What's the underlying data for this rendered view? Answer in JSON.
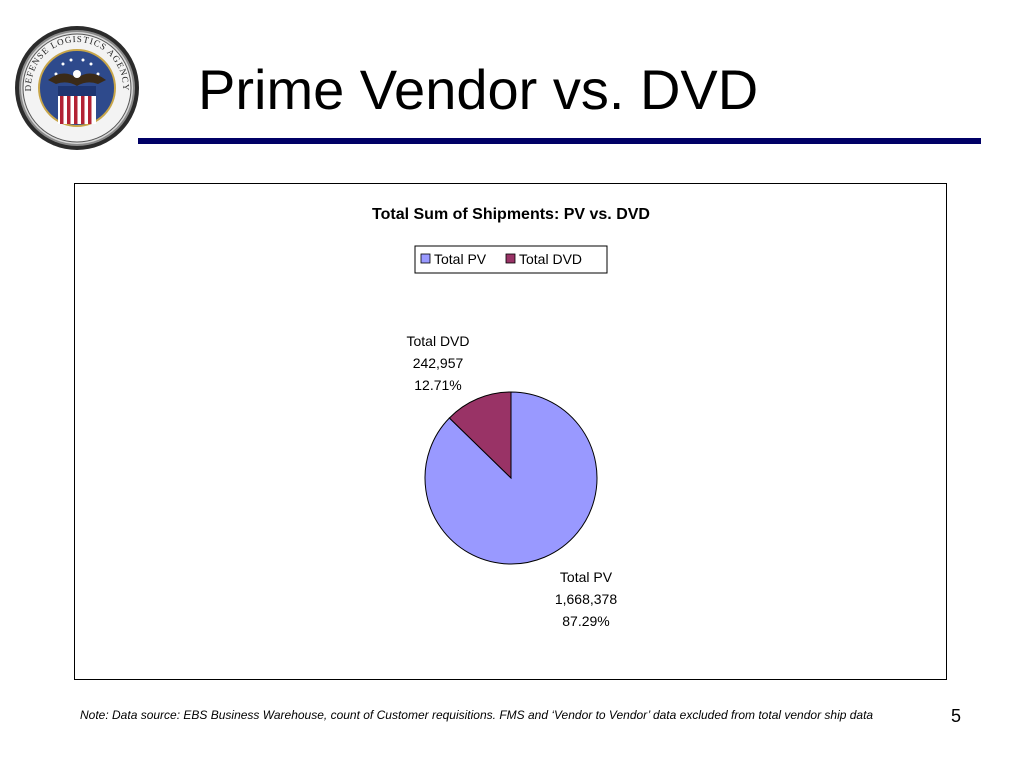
{
  "slide": {
    "title": "Prime Vendor vs. DVD",
    "footnote": "Note: Data source: EBS Business Warehouse, count of Customer requisitions.  FMS and ‘Vendor to Vendor’ data excluded from total vendor ship data",
    "page_number": "5",
    "logo_icon": "dla-seal-icon",
    "logo_text": "DEFENSE LOGISTICS AGENCY",
    "rule_color": "#000066"
  },
  "chart_data": {
    "type": "pie",
    "title": "Total Sum of Shipments: PV vs. DVD",
    "legend_position": "top",
    "legend": [
      "Total PV",
      "Total DVD"
    ],
    "slices": [
      {
        "label": "Total PV",
        "value": 1668378,
        "value_label": "1,668,378",
        "percent_label": "87.29%",
        "color": "#9999ff"
      },
      {
        "label": "Total DVD",
        "value": 242957,
        "value_label": "242,957",
        "percent_label": "12.71%",
        "color": "#993366"
      }
    ]
  }
}
